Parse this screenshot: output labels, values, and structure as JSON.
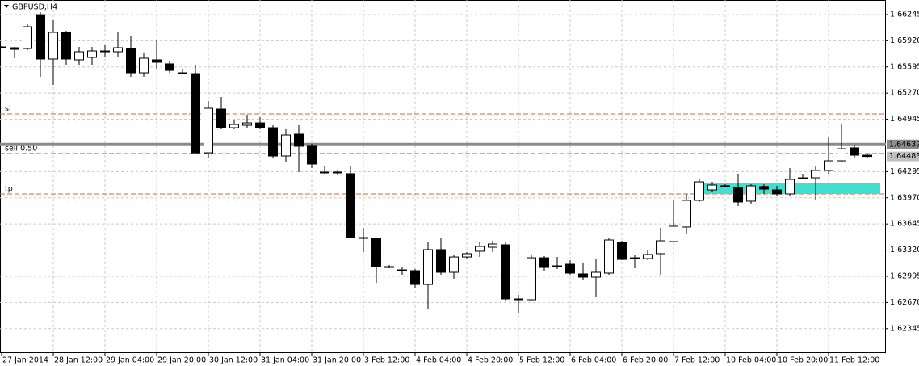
{
  "chart_data": {
    "type": "candlestick",
    "title": "GBPUSD,H4",
    "categories": [
      "27 Jan 2014",
      null,
      null,
      null,
      "28 Jan 12:00",
      null,
      null,
      null,
      "29 Jan 04:00",
      null,
      null,
      null,
      "29 Jan 20:00",
      null,
      null,
      null,
      "30 Jan 12:00",
      null,
      null,
      null,
      "31 Jan 04:00",
      null,
      null,
      null,
      "31 Jan 20:00",
      null,
      null,
      null,
      "3 Feb 12:00",
      null,
      null,
      null,
      "4 Feb 04:00",
      null,
      null,
      null,
      "4 Feb 20:00",
      null,
      null,
      null,
      "5 Feb 12:00",
      null,
      null,
      null,
      "6 Feb 04:00",
      null,
      null,
      null,
      "6 Feb 20:00",
      null,
      null,
      null,
      "7 Feb 12:00",
      null,
      null,
      null,
      "10 Feb 04:00",
      null,
      null,
      null,
      "10 Feb 20:00",
      null,
      null,
      null,
      "11 Feb 12:00",
      null,
      null,
      null
    ],
    "open": [
      1.65843,
      1.65833,
      1.65823,
      1.66244,
      1.65693,
      1.66024,
      1.65683,
      1.65713,
      1.65793,
      1.65783,
      1.65823,
      1.65522,
      1.65683,
      1.65633,
      1.65522,
      1.65512,
      1.64529,
      1.65071,
      1.6484,
      1.6487,
      1.649,
      1.6484,
      1.64489,
      1.6476,
      1.6461,
      1.64289,
      1.64289,
      1.64269,
      1.63476,
      1.63466,
      1.63115,
      1.63075,
      1.63065,
      1.62894,
      1.63326,
      1.63045,
      1.63235,
      1.63306,
      1.63356,
      1.63386,
      1.62714,
      1.62704,
      1.63225,
      1.63125,
      1.63145,
      1.63025,
      1.62985,
      1.63035,
      1.63416,
      1.63225,
      1.63215,
      1.63276,
      1.63426,
      1.63607,
      1.63938,
      1.64068,
      1.64118,
      1.64098,
      1.63928,
      1.64108,
      1.64068,
      1.64018,
      1.64218,
      1.64218,
      1.64309,
      1.64429,
      1.6459,
      1.64499
    ],
    "high": [
      1.65853,
      1.65843,
      1.66124,
      1.66275,
      1.66174,
      1.66044,
      1.65843,
      1.65843,
      1.65863,
      1.66024,
      1.65974,
      1.65773,
      1.65924,
      1.65673,
      1.65562,
      1.65623,
      1.65171,
      1.65221,
      1.64941,
      1.65001,
      1.64971,
      1.6487,
      1.6482,
      1.6487,
      1.6464,
      1.64369,
      1.64319,
      1.64369,
      1.63597,
      1.63476,
      1.63135,
      1.63115,
      1.63085,
      1.63416,
      1.63466,
      1.63266,
      1.63296,
      1.63416,
      1.63436,
      1.63416,
      1.62764,
      1.63266,
      1.63245,
      1.63235,
      1.63195,
      1.63165,
      1.63215,
      1.63466,
      1.63436,
      1.63266,
      1.63316,
      1.63597,
      1.63938,
      1.64018,
      1.64198,
      1.64168,
      1.64138,
      1.64269,
      1.64138,
      1.64138,
      1.64118,
      1.64339,
      1.64269,
      1.64369,
      1.6472,
      1.6488,
      1.6462,
      1.64509
    ],
    "low": [
      1.65833,
      1.65703,
      1.65803,
      1.65472,
      1.65372,
      1.65623,
      1.65623,
      1.65623,
      1.65723,
      1.65723,
      1.65472,
      1.65472,
      1.65572,
      1.65522,
      1.65502,
      1.64519,
      1.64469,
      1.6482,
      1.6482,
      1.6484,
      1.6482,
      1.64469,
      1.64419,
      1.64289,
      1.64339,
      1.64269,
      1.64259,
      1.63466,
      1.63296,
      1.62915,
      1.63095,
      1.63015,
      1.62854,
      1.62584,
      1.63015,
      1.62965,
      1.63215,
      1.63235,
      1.63296,
      1.62694,
      1.62533,
      1.62694,
      1.63065,
      1.63085,
      1.63015,
      1.62955,
      1.62744,
      1.63015,
      1.63195,
      1.63095,
      1.63195,
      1.63015,
      1.63416,
      1.63516,
      1.63918,
      1.64038,
      1.64098,
      1.63867,
      1.63897,
      1.64018,
      1.63998,
      1.63998,
      1.64198,
      1.63948,
      1.64269,
      1.64419,
      1.64469,
      1.64469
    ],
    "close": [
      1.65843,
      1.65813,
      1.66094,
      1.65693,
      1.66024,
      1.65693,
      1.65783,
      1.65793,
      1.65793,
      1.65833,
      1.65522,
      1.65703,
      1.65653,
      1.65552,
      1.65522,
      1.64529,
      1.65081,
      1.6484,
      1.6488,
      1.649,
      1.6484,
      1.64489,
      1.6475,
      1.6461,
      1.64389,
      1.64289,
      1.64289,
      1.63476,
      1.63476,
      1.63115,
      1.63115,
      1.63075,
      1.62894,
      1.63326,
      1.63045,
      1.63235,
      1.63276,
      1.63366,
      1.63396,
      1.62714,
      1.62714,
      1.63225,
      1.63105,
      1.63125,
      1.63035,
      1.62985,
      1.63045,
      1.63446,
      1.63205,
      1.63225,
      1.63266,
      1.63436,
      1.63617,
      1.63938,
      1.64168,
      1.64128,
      1.64118,
      1.63918,
      1.64118,
      1.64078,
      1.64018,
      1.64198,
      1.64218,
      1.64309,
      1.64429,
      1.64579,
      1.64499,
      1.64483
    ],
    "ylim": [
      1.62042,
      1.66425
    ],
    "yticks": [
      1.66245,
      {
        "value": 1.6592,
        "label": "1.65920"
      },
      1.65595,
      {
        "value": 1.6527,
        "label": "1.65270"
      },
      1.64945,
      1.64295,
      {
        "value": 1.6397,
        "label": "1.63970"
      },
      1.63645,
      {
        "value": 1.6332,
        "label": "1.63320"
      },
      1.62995,
      {
        "value": 1.6267,
        "label": "1.62670"
      },
      1.62345
    ],
    "grid": true,
    "levels": [
      {
        "label": "sl",
        "value": 1.65011,
        "color": "#e0602a"
      },
      {
        "label": "sell 0.50",
        "value": 1.64519,
        "color": "#2a9a2a"
      },
      {
        "label": "tp",
        "value": 1.64018,
        "color": "#e0602a"
      }
    ],
    "bid": 1.64632,
    "ask": 1.64483
  }
}
